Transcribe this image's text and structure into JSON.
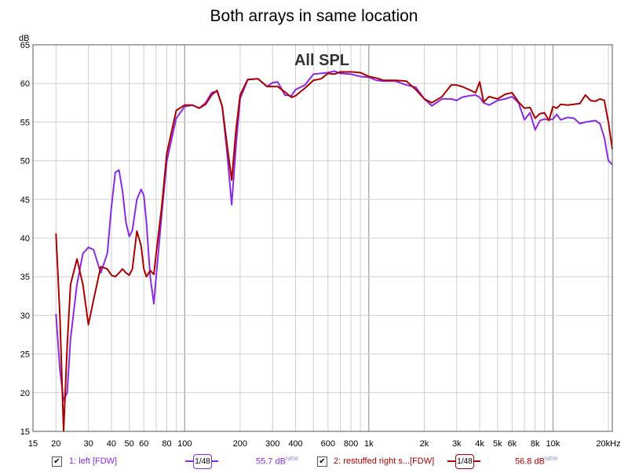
{
  "chart_data": {
    "type": "line",
    "title": "Both arrays in same location",
    "annotation": "All SPL",
    "ylabel": "dB",
    "xlabel": "",
    "x_scale": "log",
    "xlim": [
      15,
      21000
    ],
    "ylim": [
      15,
      65
    ],
    "grid": true,
    "x_ticks": [
      15,
      20,
      30,
      40,
      50,
      60,
      80,
      100,
      200,
      300,
      400,
      600,
      800,
      1000,
      2000,
      3000,
      4000,
      5000,
      6000,
      8000,
      10000,
      20000
    ],
    "x_tick_labels": [
      "15",
      "20",
      "30",
      "40",
      "50",
      "60",
      "80",
      "100",
      "200",
      "300",
      "400",
      "600",
      "800",
      "1k",
      "2k",
      "3k",
      "4k",
      "5k",
      "6k",
      "8k",
      "10k",
      "20kHz"
    ],
    "y_ticks": [
      15,
      20,
      25,
      30,
      35,
      40,
      45,
      50,
      55,
      60,
      65
    ],
    "y_tick_labels": [
      "15",
      "20",
      "25",
      "30",
      "35",
      "40",
      "45",
      "50",
      "55",
      "60",
      "65"
    ],
    "series": [
      {
        "name": "1: left [FDW]",
        "color": "#8a2be2",
        "x": [
          20,
          21,
          22,
          23,
          24,
          26,
          28,
          30,
          32,
          35,
          38,
          40,
          42,
          44,
          46,
          48,
          50,
          52,
          55,
          58,
          60,
          62,
          65,
          68,
          70,
          75,
          80,
          90,
          100,
          110,
          120,
          130,
          140,
          150,
          160,
          170,
          180,
          190,
          200,
          220,
          250,
          280,
          300,
          320,
          350,
          380,
          400,
          450,
          500,
          550,
          600,
          650,
          700,
          800,
          900,
          1000,
          1100,
          1200,
          1400,
          1600,
          1800,
          2000,
          2200,
          2500,
          2800,
          3000,
          3200,
          3500,
          3800,
          4000,
          4200,
          4500,
          5000,
          5500,
          6000,
          6500,
          7000,
          7500,
          8000,
          8500,
          9000,
          9500,
          10000,
          10500,
          11000,
          12000,
          13000,
          14000,
          15000,
          16000,
          17000,
          18000,
          19000,
          20000,
          21000
        ],
        "y": [
          30.2,
          23,
          19,
          20,
          27,
          34,
          38,
          38.8,
          38.5,
          35.5,
          38,
          44,
          48.5,
          48.8,
          46,
          42,
          40.2,
          41,
          45,
          46.3,
          45.5,
          42,
          35,
          31.5,
          35,
          43,
          50,
          55.5,
          57,
          57.2,
          56.8,
          57.5,
          58.8,
          59,
          57,
          51,
          44.3,
          52,
          58,
          60.5,
          60.6,
          59.6,
          60.1,
          60.2,
          58.5,
          58.4,
          59.2,
          59.8,
          61.2,
          61.3,
          61.4,
          61.6,
          61.3,
          61.2,
          60.9,
          60.8,
          60.4,
          60.3,
          60.3,
          59.8,
          59.5,
          58,
          57.1,
          58,
          58,
          57.8,
          58.2,
          58.4,
          58.5,
          58.2,
          57.5,
          57.2,
          57.8,
          58,
          58.3,
          57.5,
          55.3,
          56.2,
          54,
          55.2,
          55.4,
          55.3,
          55.4,
          56,
          55.3,
          55.6,
          55.5,
          54.8,
          55,
          55.1,
          55.2,
          54.8,
          53,
          50,
          49.5
        ]
      },
      {
        "name": "2: restuffed right s...[FDW]",
        "color": "#aa0000",
        "x": [
          20,
          21,
          22,
          23,
          24,
          26,
          28,
          30,
          32,
          35,
          38,
          40,
          42,
          44,
          46,
          48,
          50,
          52,
          55,
          58,
          60,
          62,
          65,
          68,
          70,
          75,
          80,
          90,
          100,
          110,
          120,
          130,
          140,
          150,
          160,
          170,
          180,
          190,
          200,
          220,
          250,
          280,
          300,
          320,
          350,
          380,
          400,
          450,
          500,
          550,
          600,
          650,
          700,
          800,
          900,
          1000,
          1100,
          1200,
          1400,
          1600,
          1800,
          2000,
          2200,
          2500,
          2800,
          3000,
          3200,
          3500,
          3800,
          4000,
          4200,
          4500,
          5000,
          5500,
          6000,
          6500,
          7000,
          7500,
          8000,
          8500,
          9000,
          9500,
          10000,
          10500,
          11000,
          12000,
          13000,
          14000,
          15000,
          16000,
          17000,
          18000,
          19000,
          20000,
          21000
        ],
        "y": [
          40.6,
          30,
          15,
          26,
          34,
          37.3,
          34,
          28.8,
          32,
          36.3,
          36,
          35.2,
          35,
          35.5,
          36,
          35.5,
          35.2,
          36,
          40.9,
          39,
          36,
          35,
          35.8,
          35.3,
          38,
          44,
          51,
          56.5,
          57.2,
          57.2,
          56.8,
          57.3,
          58.5,
          59.1,
          57,
          52,
          47.5,
          54,
          58.5,
          60.5,
          60.6,
          59.6,
          59.6,
          59.6,
          58.9,
          58.2,
          58.4,
          59.4,
          60.4,
          60.6,
          61.3,
          61.2,
          61.5,
          61.5,
          61.4,
          60.9,
          60.7,
          60.4,
          60.4,
          60.3,
          59.2,
          58,
          57.5,
          58.3,
          59.8,
          59.8,
          59.6,
          59.2,
          58.8,
          60.2,
          57.6,
          58.3,
          58,
          58.6,
          58.8,
          57.6,
          56.8,
          56.9,
          55.5,
          56.1,
          56.2,
          55.2,
          57,
          56.8,
          57.3,
          57.2,
          57.3,
          57.4,
          58.5,
          57.8,
          57.7,
          58,
          57.8,
          55,
          51.5
        ]
      }
    ]
  },
  "legend": {
    "items": [
      {
        "label": "1: left [FDW]",
        "smoothing": "1/48",
        "value": "55.7 dB",
        "badge": "NEW",
        "color": "#8a2be2",
        "checked": "✔"
      },
      {
        "label": "2: restuffed right s...[FDW]",
        "smoothing": "1/48",
        "value": "56.8 dB",
        "badge": "NEW",
        "color": "#aa0000",
        "checked": "✔"
      }
    ]
  }
}
